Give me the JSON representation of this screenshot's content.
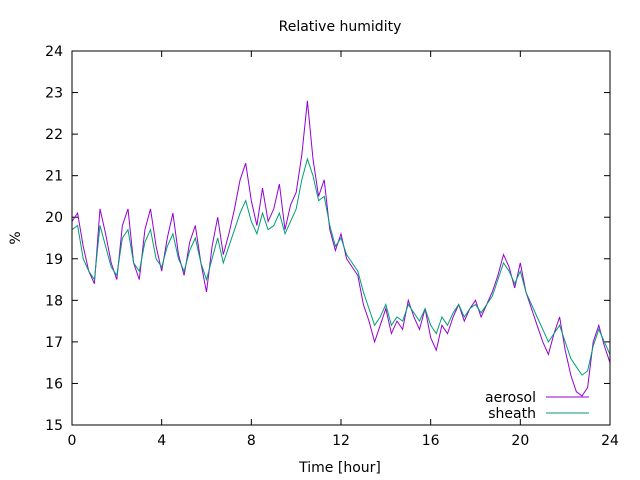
{
  "chart_data": {
    "type": "line",
    "title": "Relative humidity",
    "xlabel": "Time [hour]",
    "ylabel": "%",
    "xlim": [
      0,
      24
    ],
    "ylim": [
      15,
      24
    ],
    "xticks": [
      "0",
      "4",
      "8",
      "12",
      "16",
      "20",
      "24"
    ],
    "yticks": [
      "15",
      "16",
      "17",
      "18",
      "19",
      "20",
      "21",
      "22",
      "23",
      "24"
    ],
    "grid": false,
    "legend_position": "bottom-right",
    "x": [
      0,
      0.25,
      0.5,
      0.75,
      1,
      1.25,
      1.5,
      1.75,
      2,
      2.25,
      2.5,
      2.75,
      3,
      3.25,
      3.5,
      3.75,
      4,
      4.25,
      4.5,
      4.75,
      5,
      5.25,
      5.5,
      5.75,
      6,
      6.25,
      6.5,
      6.75,
      7,
      7.25,
      7.5,
      7.75,
      8,
      8.25,
      8.5,
      8.75,
      9,
      9.25,
      9.5,
      9.75,
      10,
      10.25,
      10.5,
      10.75,
      11,
      11.25,
      11.5,
      11.75,
      12,
      12.25,
      12.5,
      12.75,
      13,
      13.25,
      13.5,
      13.75,
      14,
      14.25,
      14.5,
      14.75,
      15,
      15.25,
      15.5,
      15.75,
      16,
      16.25,
      16.5,
      16.75,
      17,
      17.25,
      17.5,
      17.75,
      18,
      18.25,
      18.5,
      18.75,
      19,
      19.25,
      19.5,
      19.75,
      20,
      20.25,
      20.5,
      20.75,
      21,
      21.25,
      21.5,
      21.75,
      22,
      22.25,
      22.5,
      22.75,
      23,
      23.25,
      23.5,
      23.75,
      24
    ],
    "series": [
      {
        "name": "aerosol",
        "color": "#9400d3",
        "values": [
          19.9,
          20.1,
          19.3,
          18.7,
          18.4,
          20.2,
          19.6,
          18.9,
          18.5,
          19.8,
          20.2,
          18.9,
          18.5,
          19.7,
          20.2,
          19.3,
          18.7,
          19.5,
          20.1,
          19.1,
          18.6,
          19.4,
          19.8,
          18.9,
          18.2,
          19.3,
          20.0,
          19.1,
          19.6,
          20.2,
          20.9,
          21.3,
          20.4,
          19.8,
          20.7,
          19.9,
          20.2,
          20.8,
          19.7,
          20.3,
          20.6,
          21.5,
          22.8,
          21.4,
          20.5,
          20.9,
          19.7,
          19.2,
          19.6,
          19.0,
          18.8,
          18.6,
          17.9,
          17.5,
          17.0,
          17.4,
          17.8,
          17.2,
          17.5,
          17.3,
          18.0,
          17.6,
          17.3,
          17.8,
          17.1,
          16.8,
          17.4,
          17.2,
          17.6,
          17.9,
          17.5,
          17.8,
          18.0,
          17.6,
          17.9,
          18.2,
          18.6,
          19.1,
          18.8,
          18.3,
          18.9,
          18.2,
          17.8,
          17.4,
          17.0,
          16.7,
          17.2,
          17.6,
          16.8,
          16.2,
          15.8,
          15.7,
          15.9,
          17.0,
          17.4,
          16.9,
          16.5
        ]
      },
      {
        "name": "sheath",
        "color": "#009e73",
        "values": [
          19.7,
          19.8,
          19.0,
          18.7,
          18.5,
          19.8,
          19.3,
          18.8,
          18.6,
          19.5,
          19.7,
          18.9,
          18.7,
          19.4,
          19.7,
          19.0,
          18.8,
          19.3,
          19.6,
          19.0,
          18.7,
          19.2,
          19.5,
          18.9,
          18.5,
          19.0,
          19.5,
          18.9,
          19.3,
          19.7,
          20.1,
          20.4,
          19.9,
          19.6,
          20.1,
          19.7,
          19.8,
          20.1,
          19.6,
          19.9,
          20.2,
          20.9,
          21.4,
          21.0,
          20.4,
          20.5,
          19.8,
          19.3,
          19.5,
          19.1,
          18.9,
          18.7,
          18.2,
          17.8,
          17.4,
          17.6,
          17.9,
          17.4,
          17.6,
          17.5,
          17.9,
          17.7,
          17.5,
          17.8,
          17.4,
          17.2,
          17.6,
          17.4,
          17.7,
          17.9,
          17.6,
          17.8,
          17.9,
          17.7,
          17.9,
          18.1,
          18.5,
          18.9,
          18.7,
          18.4,
          18.7,
          18.2,
          17.9,
          17.6,
          17.3,
          17.0,
          17.2,
          17.4,
          17.0,
          16.6,
          16.4,
          16.2,
          16.3,
          16.9,
          17.3,
          17.0,
          16.7
        ]
      }
    ]
  }
}
